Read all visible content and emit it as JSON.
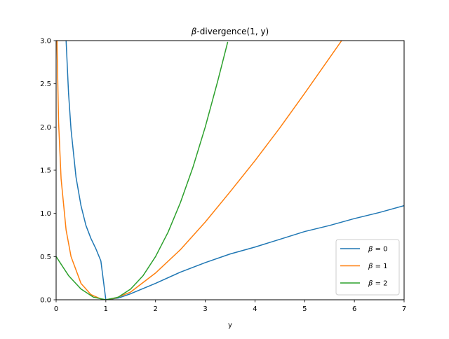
{
  "chart_data": {
    "type": "line",
    "title": "β-divergence(1, y)",
    "title_symbol": "β",
    "title_suffix": "-divergence(1, y)",
    "xlabel": "y",
    "ylabel": "",
    "xlim": [
      0,
      7
    ],
    "ylim": [
      0,
      3
    ],
    "xticks": [
      0,
      1,
      2,
      3,
      4,
      5,
      6,
      7
    ],
    "xtick_labels": [
      "0",
      "1",
      "2",
      "3",
      "4",
      "5",
      "6",
      "7"
    ],
    "yticks": [
      0,
      0.5,
      1,
      1.5,
      2,
      2.5,
      3
    ],
    "ytick_labels": [
      "0.0",
      "0.5",
      "1.0",
      "1.5",
      "2.0",
      "2.5",
      "3.0"
    ],
    "grid": false,
    "legend_position": "lower-right",
    "series": [
      {
        "name": "β = 0",
        "name_symbol": "β",
        "name_suffix": " = 0",
        "beta": 0,
        "color": "#1f77b4",
        "x": [
          0.2,
          0.25,
          0.3,
          0.4,
          0.5,
          0.6,
          0.7,
          0.8,
          0.9,
          1.0,
          1.25,
          1.5,
          2.0,
          2.5,
          3.0,
          3.5,
          4.0,
          4.5,
          5.0,
          5.5,
          6.0,
          6.5,
          7.0
        ],
        "y": [
          3.01,
          2.39,
          1.97,
          1.42,
          1.09,
          0.86,
          0.71,
          0.59,
          0.45,
          0.0,
          0.02,
          0.07,
          0.19,
          0.32,
          0.43,
          0.53,
          0.61,
          0.7,
          0.79,
          0.86,
          0.94,
          1.01,
          1.09
        ]
      },
      {
        "name": "β = 1",
        "name_symbol": "β",
        "name_suffix": " = 1",
        "beta": 1,
        "color": "#ff7f0e",
        "x": [
          0.01,
          0.02,
          0.05,
          0.1,
          0.2,
          0.3,
          0.5,
          0.7,
          0.9,
          1.0,
          1.2,
          1.5,
          2.0,
          2.5,
          3.0,
          3.5,
          4.0,
          4.5,
          5.0,
          5.5,
          5.78
        ],
        "y": [
          3.6,
          2.9,
          2.05,
          1.4,
          0.81,
          0.5,
          0.19,
          0.06,
          0.01,
          0.0,
          0.02,
          0.09,
          0.31,
          0.58,
          0.9,
          1.25,
          1.61,
          1.99,
          2.39,
          2.8,
          3.03
        ]
      },
      {
        "name": "β = 2",
        "name_symbol": "β",
        "name_suffix": " = 2",
        "beta": 2,
        "color": "#2ca02c",
        "x": [
          0.0,
          0.25,
          0.5,
          0.75,
          1.0,
          1.25,
          1.5,
          1.75,
          2.0,
          2.25,
          2.5,
          2.75,
          3.0,
          3.25,
          3.45
        ],
        "y": [
          0.5,
          0.28,
          0.125,
          0.03,
          0.0,
          0.03,
          0.125,
          0.28,
          0.5,
          0.78,
          1.125,
          1.53,
          2.0,
          2.53,
          2.98
        ]
      }
    ]
  }
}
